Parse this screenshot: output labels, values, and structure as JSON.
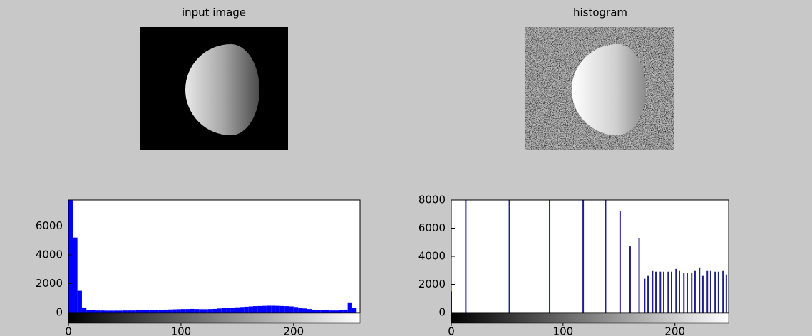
{
  "images": [
    {
      "title": "input image"
    },
    {
      "title": "histogram"
    }
  ],
  "chart_data": [
    {
      "type": "histogram",
      "color": "#0000ff",
      "bins": [
        0,
        4,
        8,
        12,
        16,
        20,
        24,
        28,
        32,
        36,
        40,
        44,
        48,
        52,
        56,
        60,
        64,
        68,
        72,
        76,
        80,
        84,
        88,
        92,
        96,
        100,
        104,
        108,
        112,
        116,
        120,
        124,
        128,
        132,
        136,
        140,
        144,
        148,
        152,
        156,
        160,
        164,
        168,
        172,
        176,
        180,
        184,
        188,
        192,
        196,
        200,
        204,
        208,
        212,
        216,
        220,
        224,
        228,
        232,
        236,
        240,
        244,
        248,
        252,
        256
      ],
      "values": [
        7800,
        5200,
        1500,
        350,
        180,
        150,
        140,
        140,
        130,
        130,
        130,
        130,
        140,
        140,
        140,
        150,
        150,
        160,
        170,
        180,
        190,
        200,
        210,
        220,
        230,
        240,
        240,
        250,
        240,
        230,
        230,
        240,
        250,
        280,
        300,
        320,
        340,
        360,
        380,
        400,
        420,
        440,
        450,
        460,
        470,
        470,
        460,
        450,
        440,
        420,
        380,
        330,
        280,
        240,
        200,
        180,
        160,
        150,
        140,
        140,
        150,
        200,
        700,
        300
      ],
      "xlim": [
        0,
        259
      ],
      "xticks": [
        0,
        100,
        200
      ],
      "ylim": [
        0,
        7800
      ],
      "yticks": [
        0,
        2000,
        4000,
        6000
      ]
    },
    {
      "type": "stem",
      "color": "#20208a",
      "x": [
        0,
        13,
        52,
        88,
        118,
        138,
        151,
        160,
        168,
        173,
        176,
        180,
        183,
        187,
        190,
        194,
        197,
        201,
        204,
        208,
        211,
        215,
        218,
        222,
        225,
        229,
        232,
        236,
        239,
        243,
        246,
        250,
        253
      ],
      "values": [
        1500,
        9000,
        9000,
        9000,
        9000,
        9000,
        7200,
        4700,
        5300,
        2400,
        2600,
        3000,
        2900,
        2900,
        2900,
        2900,
        2900,
        3100,
        3000,
        2800,
        2800,
        2800,
        3000,
        3200,
        2600,
        3000,
        3000,
        2900,
        2900,
        3000,
        2700,
        3100,
        3100
      ],
      "xlim": [
        0,
        248
      ],
      "xticks": [
        0,
        100,
        200
      ],
      "ylim": [
        0,
        8000
      ],
      "yticks": [
        0,
        2000,
        4000,
        6000,
        8000
      ]
    }
  ]
}
